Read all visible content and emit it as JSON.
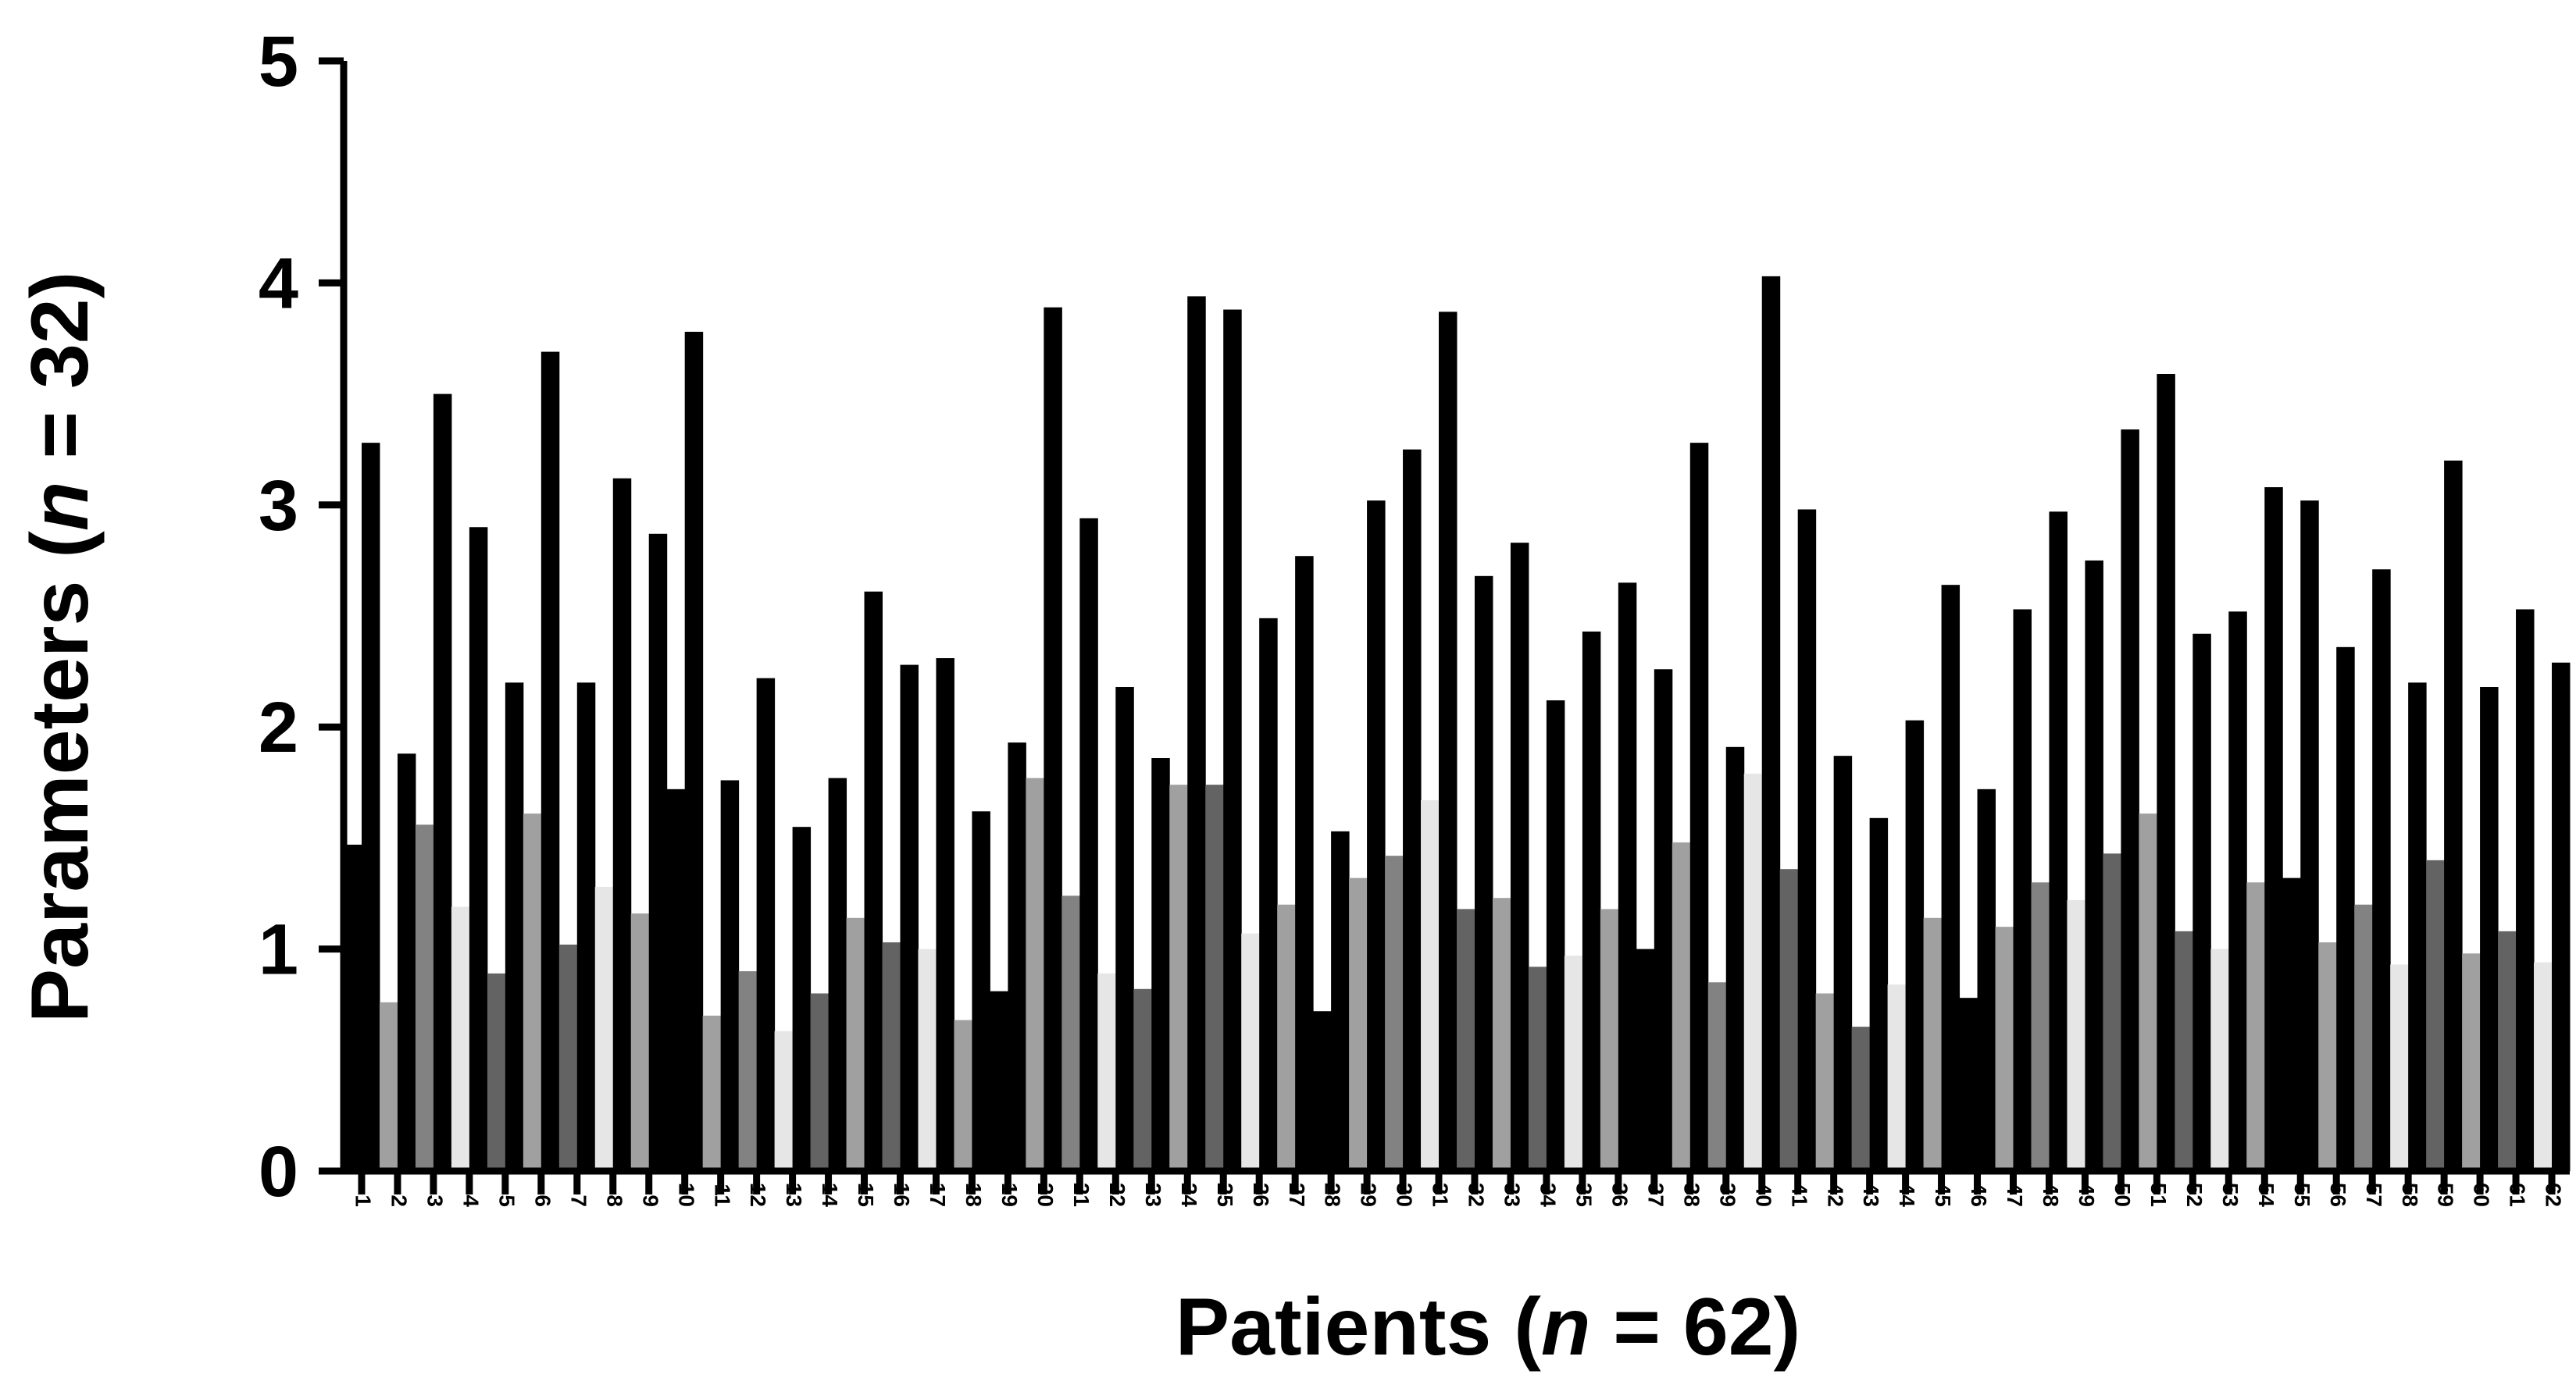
{
  "chart_data": {
    "type": "bar",
    "xlabel_parts": [
      "Patients (",
      "n",
      " = 62)"
    ],
    "ylabel_parts": [
      "Parameters (",
      "n",
      " = 32)"
    ],
    "ylim": [
      0,
      5
    ],
    "yticks": [
      "0",
      "1",
      "2",
      "3",
      "4",
      "5"
    ],
    "categories": [
      "1",
      "2",
      "3",
      "4",
      "5",
      "6",
      "7",
      "8",
      "9",
      "10",
      "11",
      "12",
      "13",
      "14",
      "15",
      "16",
      "17",
      "18",
      "19",
      "20",
      "21",
      "22",
      "23",
      "24",
      "25",
      "26",
      "27",
      "28",
      "29",
      "30",
      "31",
      "32",
      "33",
      "34",
      "35",
      "36",
      "37",
      "38",
      "39",
      "40",
      "41",
      "42",
      "43",
      "44",
      "45",
      "46",
      "47",
      "48",
      "49",
      "50",
      "51",
      "52",
      "53",
      "54",
      "55",
      "56",
      "57",
      "58",
      "59",
      "60",
      "61",
      "62"
    ],
    "series": [
      {
        "values": [
          1.47,
          0.76,
          1.56,
          1.19,
          0.89,
          1.61,
          1.02,
          1.28,
          1.16,
          1.72,
          0.7,
          0.9,
          0.63,
          0.8,
          1.14,
          1.03,
          1.0,
          0.68,
          0.81,
          1.77,
          1.24,
          0.89,
          0.82,
          1.74,
          1.74,
          1.07,
          1.2,
          0.72,
          1.32,
          1.42,
          1.67,
          1.18,
          1.23,
          0.92,
          0.97,
          1.18,
          1.0,
          1.48,
          0.85,
          1.79,
          1.36,
          0.8,
          0.65,
          0.84,
          1.14,
          0.78,
          1.1,
          1.3,
          1.22,
          1.43,
          1.61,
          1.08,
          1.0,
          1.3,
          1.32,
          1.03,
          1.2,
          0.93,
          1.4,
          0.98,
          1.08,
          0.94
        ]
      },
      {
        "values": [
          3.28,
          1.88,
          3.5,
          2.9,
          2.2,
          3.69,
          2.2,
          3.12,
          2.87,
          3.78,
          1.76,
          2.22,
          1.55,
          1.77,
          2.61,
          2.28,
          2.31,
          1.62,
          1.93,
          3.89,
          2.94,
          2.18,
          1.86,
          3.94,
          3.88,
          2.49,
          2.77,
          1.53,
          3.02,
          3.25,
          3.87,
          2.68,
          2.83,
          2.12,
          2.43,
          2.65,
          2.26,
          3.28,
          1.91,
          4.03,
          2.98,
          1.87,
          1.59,
          2.03,
          2.64,
          1.72,
          2.53,
          2.97,
          2.75,
          3.34,
          3.59,
          2.42,
          2.52,
          3.08,
          3.02,
          2.36,
          2.71,
          2.2,
          3.2,
          2.18,
          2.53,
          2.29
        ]
      }
    ],
    "colors": {
      "palette": [
        "#000000",
        "#a0a0a0",
        "#828282",
        "#e6e6e6",
        "#636363",
        "#a0a0a0",
        "#636363",
        "#e6e6e6",
        "#a0a0a0"
      ],
      "second_series": "#000000",
      "axis": "#000000"
    }
  }
}
